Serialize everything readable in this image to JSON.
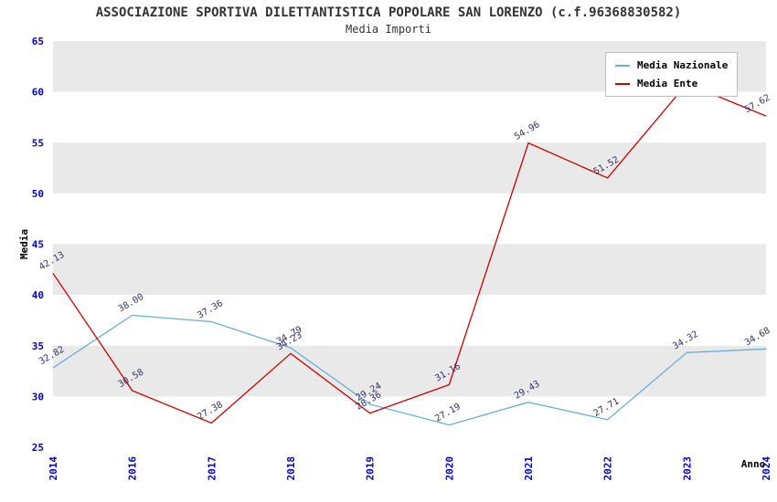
{
  "chart_data": {
    "type": "line",
    "title": "ASSOCIAZIONE SPORTIVA DILETTANTISTICA POPOLARE SAN LORENZO (c.f.96368830582)",
    "subtitle": "Media Importi",
    "xlabel": "Anno",
    "ylabel": "Media",
    "ylim": [
      25,
      65
    ],
    "ytick_step": 5,
    "grid": "horizontal-bands",
    "legend_position": "top-right",
    "categories": [
      "2014",
      "2016",
      "2017",
      "2018",
      "2019",
      "2020",
      "2021",
      "2022",
      "2023",
      "2024"
    ],
    "series": [
      {
        "name": "Media Nazionale",
        "color": "#6baed6",
        "values": [
          32.82,
          38.0,
          37.36,
          34.79,
          29.24,
          27.19,
          29.43,
          27.71,
          34.32,
          34.68
        ],
        "labels": [
          "32.82",
          "38.00",
          "37.36",
          "34.79",
          "29.24",
          "27.19",
          "29.43",
          "27.71",
          "34.32",
          "34.68"
        ]
      },
      {
        "name": "Media Ente",
        "color": "#cc0000",
        "values": [
          42.13,
          30.58,
          27.38,
          34.23,
          28.36,
          31.16,
          54.96,
          51.52,
          60.8,
          57.62
        ],
        "labels": [
          "42.13",
          "30.58",
          "27.38",
          "34.23",
          "28.36",
          "31.16",
          "54.96",
          "51.52",
          "",
          "57.62"
        ]
      }
    ],
    "colors": {
      "tick_label": "#0000cc",
      "point_label": "#333366",
      "band_gray": "#e9e9e9",
      "band_white": "#ffffff",
      "axis_title": "#000000",
      "title_color": "#333333"
    }
  }
}
